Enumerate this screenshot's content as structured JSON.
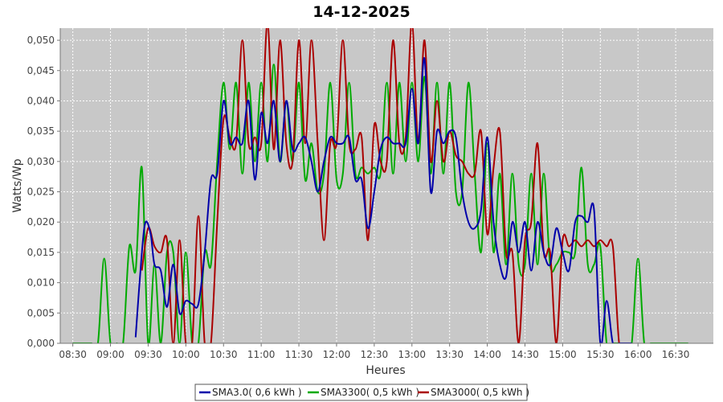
{
  "chart_data": {
    "type": "line",
    "title": "14-12-2025",
    "xlabel": "Heures",
    "ylabel": "Watts/Wp",
    "xlim": [
      "08:20",
      "17:00"
    ],
    "ylim": [
      0,
      0.052
    ],
    "x_ticks": [
      "08:30",
      "09:00",
      "09:30",
      "10:00",
      "10:30",
      "11:00",
      "11:30",
      "12:00",
      "12:30",
      "13:00",
      "13:30",
      "14:00",
      "14:30",
      "15:00",
      "15:30",
      "16:00",
      "16:30"
    ],
    "y_ticks": [
      "0,000",
      "0,005",
      "0,010",
      "0,015",
      "0,020",
      "0,025",
      "0,030",
      "0,035",
      "0,040",
      "0,045",
      "0,050"
    ],
    "grid": true,
    "legend_position": "bottom",
    "background": "#c8c8c8",
    "series": [
      {
        "name": "SMA3.0( 0,6 kWh )",
        "color": "#0000aa",
        "x": [
          "09:20",
          "09:25",
          "09:28",
          "09:32",
          "09:35",
          "09:40",
          "09:45",
          "09:50",
          "09:55",
          "10:00",
          "10:05",
          "10:10",
          "10:15",
          "10:20",
          "10:25",
          "10:30",
          "10:35",
          "10:40",
          "10:45",
          "10:50",
          "10:55",
          "11:00",
          "11:05",
          "11:10",
          "11:15",
          "11:20",
          "11:25",
          "11:30",
          "11:35",
          "11:40",
          "11:45",
          "11:50",
          "11:55",
          "12:00",
          "12:05",
          "12:10",
          "12:15",
          "12:20",
          "12:25",
          "12:30",
          "12:35",
          "12:40",
          "12:45",
          "12:50",
          "12:55",
          "13:00",
          "13:05",
          "13:10",
          "13:15",
          "13:20",
          "13:25",
          "13:30",
          "13:35",
          "13:40",
          "13:45",
          "13:50",
          "13:55",
          "14:00",
          "14:05",
          "14:10",
          "14:15",
          "14:20",
          "14:25",
          "14:30",
          "14:35",
          "14:40",
          "14:45",
          "14:50",
          "14:55",
          "15:00",
          "15:05",
          "15:10",
          "15:15",
          "15:20",
          "15:25",
          "15:30",
          "15:35",
          "15:40",
          "15:45",
          "15:50",
          "15:55"
        ],
        "values": [
          0.001,
          0.015,
          0.02,
          0.018,
          0.013,
          0.012,
          0.006,
          0.013,
          0.005,
          0.007,
          0.0065,
          0.0065,
          0.015,
          0.027,
          0.028,
          0.04,
          0.033,
          0.034,
          0.033,
          0.04,
          0.027,
          0.038,
          0.033,
          0.04,
          0.03,
          0.04,
          0.032,
          0.033,
          0.034,
          0.03,
          0.025,
          0.03,
          0.034,
          0.033,
          0.033,
          0.034,
          0.027,
          0.027,
          0.019,
          0.025,
          0.032,
          0.034,
          0.033,
          0.033,
          0.033,
          0.042,
          0.033,
          0.047,
          0.025,
          0.035,
          0.033,
          0.035,
          0.034,
          0.025,
          0.02,
          0.019,
          0.022,
          0.034,
          0.02,
          0.013,
          0.011,
          0.02,
          0.015,
          0.02,
          0.012,
          0.02,
          0.015,
          0.013,
          0.019,
          0.015,
          0.012,
          0.02,
          0.021,
          0.02,
          0.022,
          0.0,
          0.007,
          0.0,
          0.0,
          0.0,
          0.0
        ]
      },
      {
        "name": "SMA3300( 0,5 kWh )",
        "color": "#00aa00",
        "x": [
          "08:30",
          "08:40",
          "08:45",
          "08:50",
          "08:55",
          "09:00",
          "09:05",
          "09:10",
          "09:15",
          "09:20",
          "09:25",
          "09:30",
          "09:35",
          "09:40",
          "09:45",
          "09:50",
          "09:55",
          "10:00",
          "10:05",
          "10:10",
          "10:15",
          "10:20",
          "10:25",
          "10:30",
          "10:35",
          "10:40",
          "10:45",
          "10:50",
          "10:55",
          "11:00",
          "11:05",
          "11:10",
          "11:15",
          "11:20",
          "11:25",
          "11:30",
          "11:35",
          "11:40",
          "11:45",
          "11:50",
          "11:55",
          "12:00",
          "12:05",
          "12:10",
          "12:15",
          "12:20",
          "12:25",
          "12:30",
          "12:35",
          "12:40",
          "12:45",
          "12:50",
          "12:55",
          "13:00",
          "13:05",
          "13:10",
          "13:15",
          "13:20",
          "13:25",
          "13:30",
          "13:35",
          "13:40",
          "13:45",
          "13:50",
          "13:55",
          "14:00",
          "14:05",
          "14:10",
          "14:15",
          "14:20",
          "14:25",
          "14:30",
          "14:35",
          "14:40",
          "14:45",
          "14:50",
          "14:55",
          "15:00",
          "15:05",
          "15:10",
          "15:15",
          "15:20",
          "15:25",
          "15:30",
          "15:35",
          "15:40",
          "15:45",
          "15:50",
          "15:55",
          "16:00",
          "16:05",
          "16:10",
          "16:15",
          "16:20",
          "16:25",
          "16:30",
          "16:40"
        ],
        "values": [
          0.0,
          0.0,
          0.0,
          0.0,
          0.014,
          0.0,
          0.0,
          0.0,
          0.016,
          0.012,
          0.029,
          0.0,
          0.013,
          0.0,
          0.015,
          0.015,
          0.0,
          0.015,
          0.0,
          0.0,
          0.015,
          0.013,
          0.03,
          0.043,
          0.032,
          0.043,
          0.028,
          0.043,
          0.03,
          0.043,
          0.03,
          0.046,
          0.03,
          0.04,
          0.03,
          0.043,
          0.027,
          0.033,
          0.025,
          0.028,
          0.043,
          0.027,
          0.028,
          0.043,
          0.028,
          0.029,
          0.028,
          0.029,
          0.028,
          0.043,
          0.028,
          0.043,
          0.03,
          0.043,
          0.03,
          0.044,
          0.028,
          0.043,
          0.028,
          0.043,
          0.025,
          0.025,
          0.043,
          0.028,
          0.015,
          0.033,
          0.015,
          0.028,
          0.013,
          0.028,
          0.013,
          0.013,
          0.028,
          0.013,
          0.028,
          0.013,
          0.013,
          0.015,
          0.015,
          0.015,
          0.029,
          0.013,
          0.013,
          0.016,
          0.0,
          0.0,
          0.0,
          0.0,
          0.0,
          0.014,
          0.0,
          0.0,
          0.0,
          0.0,
          0.0,
          0.0,
          0.0
        ]
      },
      {
        "name": "SMA3000( 0,5 kWh )",
        "color": "#aa0000",
        "x": [
          "09:25",
          "09:30",
          "09:35",
          "09:40",
          "09:45",
          "09:50",
          "09:55",
          "10:00",
          "10:05",
          "10:10",
          "10:15",
          "10:20",
          "10:25",
          "10:30",
          "10:35",
          "10:40",
          "10:45",
          "10:50",
          "10:55",
          "11:00",
          "11:05",
          "11:10",
          "11:15",
          "11:20",
          "11:25",
          "11:30",
          "11:35",
          "11:40",
          "11:45",
          "11:50",
          "11:55",
          "12:00",
          "12:05",
          "12:10",
          "12:15",
          "12:20",
          "12:25",
          "12:30",
          "12:35",
          "12:40",
          "12:45",
          "12:50",
          "12:55",
          "13:00",
          "13:05",
          "13:10",
          "13:15",
          "13:20",
          "13:25",
          "13:30",
          "13:35",
          "13:40",
          "13:45",
          "13:50",
          "13:55",
          "14:00",
          "14:05",
          "14:10",
          "14:15",
          "14:20",
          "14:25",
          "14:30",
          "14:35",
          "14:40",
          "14:45",
          "14:50",
          "14:55",
          "15:00",
          "15:05",
          "15:10",
          "15:15",
          "15:20",
          "15:25",
          "15:30",
          "15:35",
          "15:40",
          "15:45",
          "15:50",
          "15:55"
        ],
        "values": [
          0.012,
          0.019,
          0.016,
          0.015,
          0.017,
          0.0,
          0.017,
          0.0,
          0.0,
          0.021,
          0.0,
          0.0,
          0.02,
          0.037,
          0.034,
          0.033,
          0.05,
          0.033,
          0.034,
          0.033,
          0.053,
          0.032,
          0.05,
          0.033,
          0.03,
          0.05,
          0.033,
          0.05,
          0.033,
          0.017,
          0.033,
          0.033,
          0.05,
          0.033,
          0.032,
          0.034,
          0.017,
          0.036,
          0.03,
          0.03,
          0.05,
          0.033,
          0.034,
          0.053,
          0.033,
          0.05,
          0.03,
          0.04,
          0.03,
          0.035,
          0.031,
          0.03,
          0.028,
          0.028,
          0.035,
          0.018,
          0.029,
          0.035,
          0.015,
          0.015,
          0.0,
          0.017,
          0.02,
          0.033,
          0.015,
          0.015,
          0.0,
          0.017,
          0.016,
          0.017,
          0.016,
          0.017,
          0.016,
          0.017,
          0.016,
          0.016,
          0.0,
          0.0,
          0.0
        ]
      }
    ]
  }
}
